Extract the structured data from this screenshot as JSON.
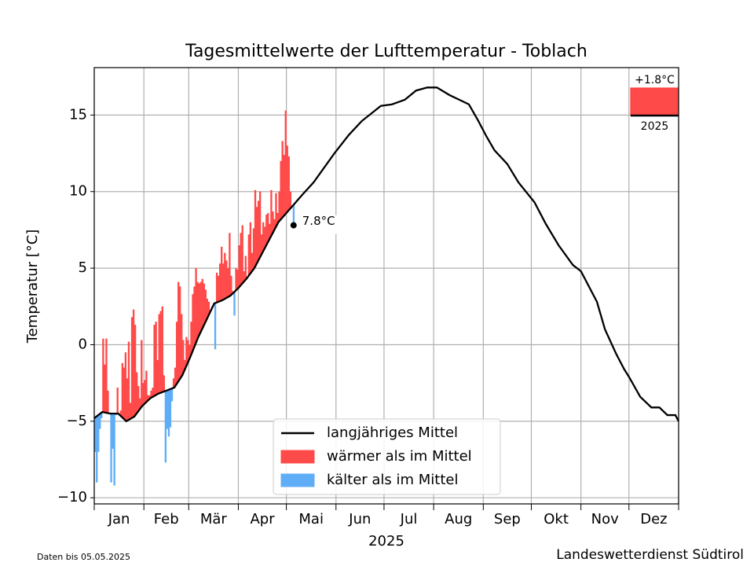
{
  "chart_data": {
    "type": "line",
    "title": "Tagesmittelwerte der Lufttemperatur - Toblach",
    "ylabel": "Temperatur [°C]",
    "xlabel": "2025",
    "note": "Daten bis 05.05.2025",
    "source": "Landeswetterdienst Südtirol",
    "xlim": [
      0,
      365
    ],
    "xticks": [
      0,
      31,
      59,
      90,
      120,
      151,
      181,
      212,
      243,
      273,
      304,
      334,
      365
    ],
    "months": [
      "Jan",
      "Feb",
      "Mär",
      "Apr",
      "Mai",
      "Jun",
      "Jul",
      "Aug",
      "Sep",
      "Okt",
      "Nov",
      "Dez"
    ],
    "ylim": [
      -10.4,
      18.1
    ],
    "yticks": [
      {
        "value": -10,
        "label": "−10"
      },
      {
        "value": -5,
        "label": "−5"
      },
      0,
      5,
      10,
      15
    ],
    "grid": true,
    "legend": "lower center",
    "series": [
      {
        "name": "langjähriges Mittel",
        "color": "#000000",
        "x": [
          0,
          5,
          10,
          15,
          20,
          25,
          30,
          35,
          40,
          45,
          50,
          55,
          60,
          65,
          70,
          75,
          80,
          85,
          90,
          95,
          100,
          105,
          110,
          115,
          120,
          125,
          130,
          137,
          150,
          159,
          167,
          179,
          186,
          194,
          201,
          208,
          214,
          222,
          228,
          234,
          240,
          245,
          250,
          258,
          265,
          275,
          282,
          290,
          299,
          304,
          314,
          319,
          326,
          331,
          334,
          341,
          348,
          353,
          358,
          363,
          365
        ],
        "values": [
          -4.8,
          -4.4,
          -4.5,
          -4.5,
          -5.0,
          -4.7,
          -4.0,
          -3.5,
          -3.2,
          -3.0,
          -2.8,
          -2.0,
          -0.8,
          0.5,
          1.6,
          2.7,
          2.9,
          3.2,
          3.7,
          4.3,
          5.0,
          6.0,
          7.0,
          8.0,
          8.6,
          9.2,
          9.8,
          10.6,
          12.5,
          13.7,
          14.6,
          15.6,
          15.7,
          16.0,
          16.6,
          16.8,
          16.8,
          16.3,
          16.0,
          15.7,
          14.6,
          13.6,
          12.7,
          11.8,
          10.6,
          9.3,
          7.9,
          6.5,
          5.2,
          4.8,
          2.8,
          1.0,
          -0.6,
          -1.6,
          -2.1,
          -3.4,
          -4.1,
          -4.1,
          -4.6,
          -4.6,
          -5.0
        ]
      }
    ],
    "warm": {
      "name": "wärmer als im Mittel",
      "color": "#ff4a4a"
    },
    "cold": {
      "name": "kälter als im Mittel",
      "color": "#5fadf7"
    },
    "daily": {
      "x": [
        0,
        1,
        2,
        3,
        4,
        5,
        6,
        7,
        8,
        9,
        10,
        11,
        12,
        13,
        14,
        15,
        16,
        17,
        18,
        19,
        20,
        21,
        22,
        23,
        24,
        25,
        26,
        27,
        28,
        29,
        30,
        31,
        32,
        33,
        34,
        35,
        36,
        37,
        38,
        39,
        40,
        41,
        42,
        43,
        44,
        45,
        46,
        47,
        48,
        49,
        50,
        51,
        52,
        53,
        54,
        55,
        56,
        57,
        58,
        59,
        60,
        61,
        62,
        63,
        64,
        65,
        66,
        67,
        68,
        69,
        70,
        71,
        72,
        73,
        74,
        75,
        76,
        77,
        78,
        79,
        80,
        81,
        82,
        83,
        84,
        85,
        86,
        87,
        88,
        89,
        90,
        91,
        92,
        93,
        94,
        95,
        96,
        97,
        98,
        99,
        100,
        101,
        102,
        103,
        104,
        105,
        106,
        107,
        108,
        109,
        110,
        111,
        112,
        113,
        114,
        115,
        116,
        117,
        118,
        119,
        120,
        121,
        122,
        123,
        124
      ],
      "values": [
        -7.0,
        -9.0,
        -7.0,
        -5.5,
        -4.8,
        0.4,
        -1.3,
        0.4,
        -3.0,
        -4.5,
        -9.0,
        -6.8,
        -9.2,
        -4.6,
        -2.8,
        -4.5,
        -4.3,
        -1.2,
        -1.5,
        -0.5,
        -2.2,
        0.2,
        -3.8,
        1.8,
        2.3,
        1.3,
        -1.8,
        -2.7,
        -3.5,
        0.3,
        -2.5,
        -2.3,
        -1.7,
        -3.3,
        -3.3,
        -3.0,
        -2.8,
        1.3,
        1.5,
        -1.0,
        2.0,
        2.2,
        2.5,
        -2.0,
        -7.7,
        -5.5,
        -6.0,
        -5.4,
        -3.7,
        -2.2,
        -1.5,
        1.5,
        4.1,
        3.8,
        2.0,
        0.3,
        -1.0,
        0.5,
        0.3,
        0.0,
        1.5,
        3.3,
        3.8,
        5.0,
        4.1,
        4.0,
        4.1,
        4.3,
        4.0,
        3.6,
        3.0,
        2.8,
        2.3,
        2.5,
        2.7,
        -0.3,
        4.7,
        4.5,
        5.3,
        6.4,
        5.3,
        6.0,
        5.5,
        5.0,
        7.3,
        4.5,
        3.5,
        1.9,
        5.0,
        4.9,
        6.5,
        7.3,
        7.8,
        4.8,
        5.8,
        4.3,
        7.2,
        8.0,
        6.0,
        7.6,
        10.1,
        9.0,
        9.4,
        10.0,
        7.2,
        8.0,
        7.7,
        8.5,
        8.6,
        7.9,
        10.1,
        8.7,
        8.2,
        9.9,
        8.6,
        10.0,
        12.0,
        13.3,
        12.4,
        15.3,
        13.0,
        12.3,
        10.0,
        9.0,
        7.8
      ],
      "annotation": "7.8°C"
    },
    "annual_anomaly": {
      "value": 1.8,
      "label": "+1.8°C",
      "year": "2025"
    }
  }
}
